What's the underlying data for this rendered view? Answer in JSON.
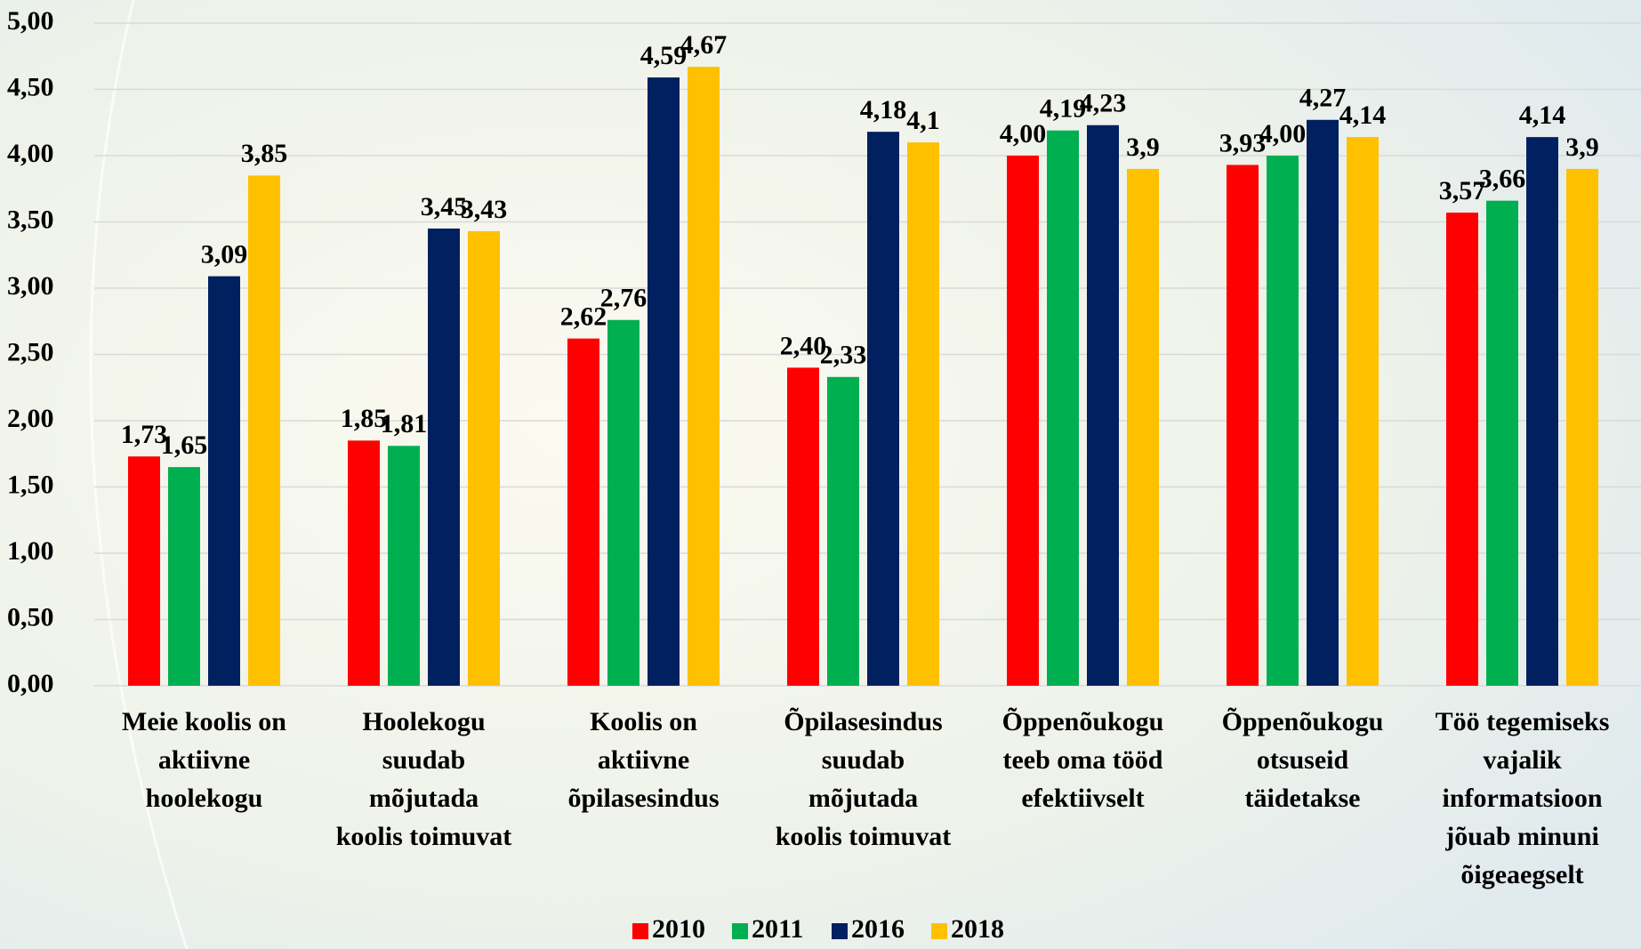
{
  "chart_data": {
    "type": "bar",
    "categories": [
      "Meie koolis on\naktiivne\nhoolekogu",
      "Hoolekogu\nsuudab\nmõjutada\nkoolis toimuvat",
      "Koolis on\naktiivne\nõpilasesindus",
      "Õpilasesindus\nsuudab\nmõjutada\nkoolis toimuvat",
      "Õppenõukogu\nteeb oma tööd\nefektiivselt",
      "Õppenõukogu\notsuseid\ntäidetakse",
      "Töö tegemiseks\nvajalik\ninformatsioon\njõuab minuni\nõigeaegselt"
    ],
    "series": [
      {
        "name": "2010",
        "color": "#ff0000",
        "values": [
          1.73,
          1.85,
          2.62,
          2.4,
          4.0,
          3.93,
          3.57
        ],
        "value_labels": [
          "1,73",
          "1,85",
          "2,62",
          "2,40",
          "4,00",
          "3,93",
          "3,57"
        ]
      },
      {
        "name": "2011",
        "color": "#00b050",
        "values": [
          1.65,
          1.81,
          2.76,
          2.33,
          4.19,
          4.0,
          3.66
        ],
        "value_labels": [
          "1,65",
          "1,81",
          "2,76",
          "2,33",
          "4,19",
          "4,00",
          "3,66"
        ]
      },
      {
        "name": "2016",
        "color": "#002060",
        "values": [
          3.09,
          3.45,
          4.59,
          4.18,
          4.23,
          4.27,
          4.14
        ],
        "value_labels": [
          "3,09",
          "3,45",
          "4,59",
          "4,18",
          "4,23",
          "4,27",
          "4,14"
        ]
      },
      {
        "name": "2018",
        "color": "#ffc000",
        "values": [
          3.85,
          3.43,
          4.67,
          4.1,
          3.9,
          4.14,
          3.9
        ],
        "value_labels": [
          "3,85",
          "3,43",
          "4,67",
          "4,1",
          "3,9",
          "4,14",
          "3,9"
        ]
      }
    ],
    "ylim": [
      0,
      5
    ],
    "yticks": [
      {
        "value": 0,
        "label": "0,00"
      },
      {
        "value": 0.5,
        "label": "0,50"
      },
      {
        "value": 1,
        "label": "1,00"
      },
      {
        "value": 1.5,
        "label": "1,50"
      },
      {
        "value": 2,
        "label": "2,00"
      },
      {
        "value": 2.5,
        "label": "2,50"
      },
      {
        "value": 3,
        "label": "3,00"
      },
      {
        "value": 3.5,
        "label": "3,50"
      },
      {
        "value": 4,
        "label": "4,00"
      },
      {
        "value": 4.5,
        "label": "4,50"
      },
      {
        "value": 5,
        "label": "5,00"
      }
    ],
    "grid": true,
    "legend": "bottom"
  }
}
